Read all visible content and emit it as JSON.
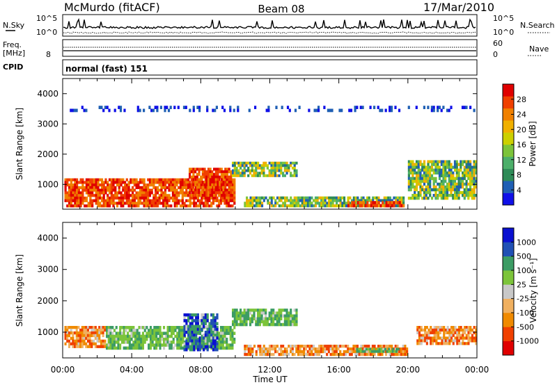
{
  "header": {
    "station": "McMurdo (fitACF)",
    "beam": "Beam 08",
    "date": "17/Mar/2010"
  },
  "noise_panel": {
    "left_label": "N.Sky",
    "right_label": "N.Search",
    "left_ticks": [
      "10^5",
      "10^0"
    ],
    "right_ticks": [
      "10^5",
      "10^0"
    ]
  },
  "freq_panel": {
    "left_label_1": "Freq.",
    "left_label_2": "[MHz]",
    "left_ticks": [
      "8"
    ],
    "right_ticks": [
      "60",
      "0"
    ],
    "right_label": "Nave"
  },
  "cpid": {
    "label": "CPID",
    "value": "normal (fast) 151"
  },
  "colors": {
    "power": [
      "#1010e8",
      "#1f5fb4",
      "#2e8b57",
      "#4caf6a",
      "#7cc43a",
      "#ccd000",
      "#f0b000",
      "#f08000",
      "#f04000",
      "#e00000"
    ],
    "velocity": [
      "#e00000",
      "#f04000",
      "#f08a00",
      "#f0b060",
      "#c8c8c8",
      "#7cc43a",
      "#3c9c64",
      "#2050b4",
      "#0a10d0"
    ]
  },
  "chart_data": [
    {
      "type": "heatmap",
      "panel": "power",
      "ylabel": "Slant Range [km]",
      "xlabel": "",
      "xlim": [
        "00:00",
        "24:00"
      ],
      "ylim": [
        180,
        4500
      ],
      "yticks": [
        "1000",
        "2000",
        "3000",
        "4000"
      ],
      "xticks": [
        "00:00",
        "04:00",
        "08:00",
        "12:00",
        "16:00",
        "20:00",
        "00:00"
      ],
      "colorbar": {
        "label": "Power [dB]",
        "ticks": [
          "4",
          "8",
          "12",
          "16",
          "20",
          "24",
          "28"
        ],
        "range": [
          0,
          32
        ]
      },
      "regions": [
        {
          "t0": 0.1,
          "t1": 10.0,
          "r0": 250,
          "r1": 1200,
          "level": "high"
        },
        {
          "t0": 7.3,
          "t1": 9.8,
          "r0": 600,
          "r1": 1550,
          "level": "high"
        },
        {
          "t0": 9.8,
          "t1": 13.6,
          "r0": 1250,
          "r1": 1750,
          "level": "mid"
        },
        {
          "t0": 10.5,
          "t1": 19.8,
          "r0": 250,
          "r1": 600,
          "level": "mid"
        },
        {
          "t0": 16.5,
          "t1": 19.8,
          "r0": 250,
          "r1": 450,
          "level": "high"
        },
        {
          "t0": 20.0,
          "t1": 24.0,
          "r0": 500,
          "r1": 1800,
          "level": "mid"
        },
        {
          "t0": 0.3,
          "t1": 24.0,
          "r0": 3400,
          "r1": 3600,
          "level": "low"
        }
      ]
    },
    {
      "type": "heatmap",
      "panel": "velocity",
      "ylabel": "Slant Range [km]",
      "xlabel": "Time UT",
      "xlim": [
        "00:00",
        "24:00"
      ],
      "ylim": [
        180,
        4500
      ],
      "yticks": [
        "1000",
        "2000",
        "3000",
        "4000"
      ],
      "xticks": [
        "00:00",
        "04:00",
        "08:00",
        "12:00",
        "16:00",
        "20:00",
        "00:00"
      ],
      "colorbar": {
        "label": "Velocity [m s⁻¹]",
        "ticks": [
          "1000",
          "500",
          "100",
          "25",
          "-25",
          "-100",
          "-500",
          "-1000"
        ],
        "range": [
          -1000,
          1000
        ]
      },
      "regions": [
        {
          "t0": 0.1,
          "t1": 2.5,
          "r0": 500,
          "r1": 1200,
          "level": "negative"
        },
        {
          "t0": 2.5,
          "t1": 10.0,
          "r0": 450,
          "r1": 1200,
          "level": "positive"
        },
        {
          "t0": 7.0,
          "t1": 9.0,
          "r0": 400,
          "r1": 1600,
          "level": "strong-positive"
        },
        {
          "t0": 9.8,
          "t1": 13.6,
          "r0": 1200,
          "r1": 1750,
          "level": "positive"
        },
        {
          "t0": 10.5,
          "t1": 20.0,
          "r0": 250,
          "r1": 600,
          "level": "negative"
        },
        {
          "t0": 17.0,
          "t1": 19.5,
          "r0": 350,
          "r1": 500,
          "level": "positive"
        },
        {
          "t0": 20.5,
          "t1": 24.0,
          "r0": 600,
          "r1": 1200,
          "level": "negative"
        }
      ]
    }
  ]
}
